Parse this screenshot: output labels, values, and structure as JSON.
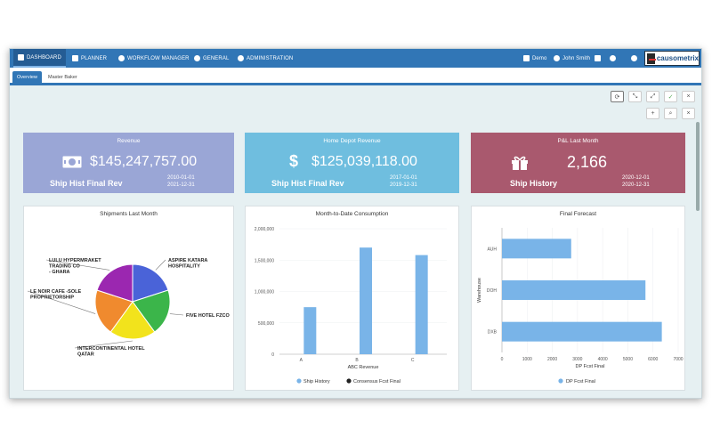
{
  "nav": {
    "items": [
      {
        "label": "DASHBOARD",
        "icon": "chart-icon"
      },
      {
        "label": "PLANNER",
        "icon": "cube-icon"
      },
      {
        "label": "WORKFLOW MANAGER",
        "icon": "cogs-icon"
      },
      {
        "label": "GENERAL",
        "icon": "bell-icon"
      },
      {
        "label": "ADMINISTRATION",
        "icon": "gear-icon"
      }
    ],
    "right": {
      "home_label": "Demo",
      "user_label": "John Smith"
    },
    "logo_text": "causometrix"
  },
  "subnav": {
    "tabs": [
      {
        "label": "Overview"
      },
      {
        "label": "Master Baker"
      }
    ]
  },
  "toolbar": {
    "row1": [
      "refresh-icon",
      "compress-icon",
      "expand-icon",
      "check-icon",
      "close-icon"
    ],
    "row2": [
      "add-icon",
      "search-icon",
      "close-icon"
    ],
    "glyphs": {
      "refresh": "⟳",
      "compress": "⤡",
      "expand": "⤢",
      "check": "✓",
      "close": "×",
      "add": "+",
      "search": "⌕"
    }
  },
  "kpis": [
    {
      "title": "Revenue",
      "value": "$145,247,757.00",
      "label": "Ship Hist Final Rev",
      "date_from": "2010-01-01",
      "date_to": "2021-12-31",
      "icon": "money-icon",
      "color": "#9aa6d6"
    },
    {
      "title": "Home Depot Revenue",
      "value": "$125,039,118.00",
      "label": "Ship Hist Final Rev",
      "date_from": "2017-01-01",
      "date_to": "2019-12-31",
      "icon": "dollar-icon",
      "icon_glyph": "$",
      "color": "#6fbedf"
    },
    {
      "title": "P&L Last Month",
      "value": "2,166",
      "label": "Ship History",
      "date_from": "2020-12-01",
      "date_to": "2020-12-31",
      "icon": "gift-icon",
      "color": "#a9596e"
    }
  ],
  "chart_data": [
    {
      "type": "pie",
      "title": "Shipments Last Month",
      "slices": [
        {
          "label": "ASPIRE KATARA HOSPITALITY",
          "value": 20,
          "color": "#4a63d8"
        },
        {
          "label": "FIVE HOTEL FZCO",
          "value": 20,
          "color": "#3bb54a"
        },
        {
          "label": "INTERCONTINENTAL HOTEL QATAR",
          "value": 20,
          "color": "#f2e31c"
        },
        {
          "label": "LE NOIR CAFE -SOLE PROPRIETORSHIP",
          "value": 20,
          "color": "#f08a2e"
        },
        {
          "label": "LULU HYPERMRAKET TRADING CO - GHARA",
          "value": 20,
          "color": "#9b27b0"
        }
      ]
    },
    {
      "type": "bar",
      "title": "Month-to-Date Consumption",
      "categories": [
        "A",
        "B",
        "C"
      ],
      "series": [
        {
          "name": "Ship History",
          "values": [
            750000,
            1700000,
            1580000
          ],
          "color": "#79b4e8"
        },
        {
          "name": "Consensus Fcst Final",
          "values": [
            0,
            0,
            0
          ],
          "color": "#222222"
        }
      ],
      "xlabel": "ABC Revenue",
      "ylabel": "",
      "ylim": [
        0,
        2000000
      ],
      "yticks": [
        "0",
        "500,000",
        "1,000,000",
        "1,500,000",
        "2,000,000"
      ]
    },
    {
      "type": "bar",
      "orientation": "horizontal",
      "title": "Final Forecast",
      "categories": [
        "AUH",
        "DOH",
        "DXB"
      ],
      "series": [
        {
          "name": "DP Fcst Final",
          "values": [
            2750,
            5700,
            6350
          ],
          "color": "#79b4e8"
        }
      ],
      "xlabel": "DP Fcst Final",
      "ylabel": "Warehouse",
      "xlim": [
        0,
        7000
      ],
      "xticks": [
        "0",
        "1000",
        "2000",
        "3000",
        "4000",
        "5000",
        "6000",
        "7000"
      ]
    }
  ]
}
